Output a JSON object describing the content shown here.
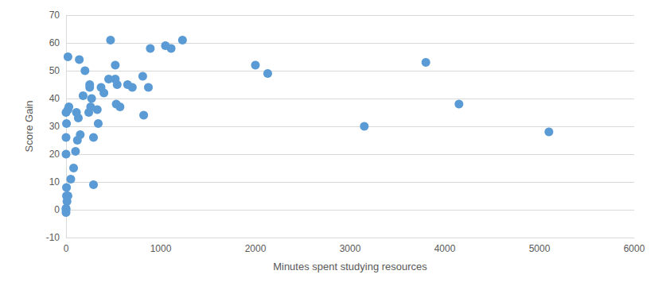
{
  "chart_data": {
    "type": "scatter",
    "x_label": "Minutes spent studying resources",
    "y_label": "Score Gain",
    "color": "#5b9bd5",
    "marker": "circle",
    "grid": true,
    "x": [
      0,
      0,
      0,
      10,
      20,
      5,
      5,
      0,
      0,
      5,
      0,
      20,
      30,
      20,
      50,
      80,
      100,
      120,
      110,
      130,
      150,
      140,
      180,
      200,
      250,
      250,
      240,
      260,
      270,
      290,
      290,
      330,
      340,
      370,
      400,
      450,
      470,
      520,
      520,
      540,
      530,
      570,
      650,
      700,
      810,
      820,
      870,
      890,
      1050,
      1110,
      1230,
      2000,
      2130,
      3150,
      3800,
      4150,
      5100
    ],
    "values": [
      -1,
      0.5,
      0,
      3,
      5,
      5,
      8,
      20,
      26,
      31,
      35,
      36,
      37,
      55,
      11,
      15,
      21,
      25,
      35,
      33,
      27,
      54,
      41,
      50,
      45,
      44,
      35,
      37,
      40,
      26,
      9,
      36,
      31,
      44,
      42,
      47,
      61,
      52,
      47,
      45,
      38,
      37,
      45,
      44,
      48,
      34,
      44,
      58,
      59,
      58,
      61,
      52,
      49,
      30,
      53,
      38,
      28
    ],
    "xlim": [
      0,
      6000
    ],
    "xticks": [
      0,
      1000,
      2000,
      3000,
      4000,
      5000,
      6000
    ],
    "ylim": [
      -10,
      70
    ],
    "yticks": [
      -10,
      0,
      10,
      20,
      30,
      40,
      50,
      60,
      70
    ]
  }
}
